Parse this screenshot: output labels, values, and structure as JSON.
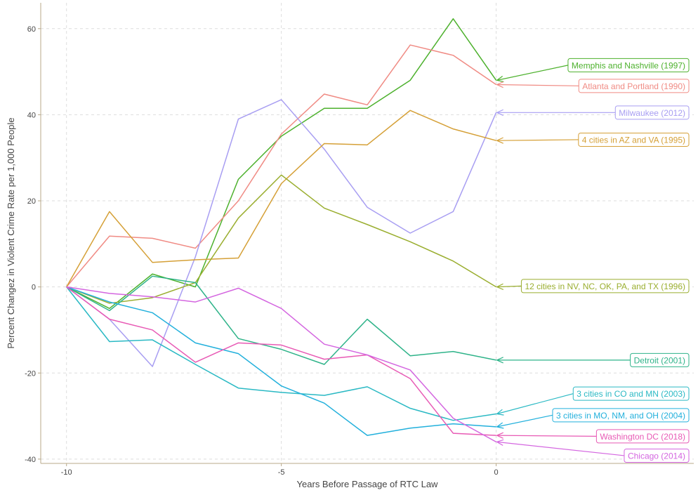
{
  "chart_data": {
    "type": "line",
    "title": "",
    "xlabel": "Years Before Passage of RTC Law",
    "ylabel": "Percent Changez in Violent Crime Rate per 1,000 People",
    "xlim": [
      -10.6,
      4.6
    ],
    "ylim": [
      -41,
      66
    ],
    "x_ticks": [
      -10,
      -5,
      0
    ],
    "x_tick_labels": [
      "-10",
      "-5",
      "0"
    ],
    "y_ticks": [
      -40,
      -20,
      0,
      20,
      40,
      60
    ],
    "y_tick_labels": [
      "-40",
      "-20",
      "0",
      "20",
      "40",
      "60"
    ],
    "grid": true,
    "legend": "none (direct labels with arrows)",
    "x": [
      -10,
      -9,
      -8,
      -7,
      -6,
      -5,
      -4,
      -3,
      -2,
      -1,
      0
    ],
    "series": [
      {
        "name": "Memphis and Nashville (1997)",
        "color": "#4db12d",
        "values": [
          0,
          -5,
          3,
          0,
          25,
          35,
          41.5,
          41.5,
          48,
          62.3,
          48
        ]
      },
      {
        "name": "Atlanta and Portland (1990)",
        "color": "#f08b84",
        "values": [
          0,
          11.8,
          11.3,
          9,
          20,
          35.5,
          44.8,
          42.3,
          56.2,
          53.8,
          47
        ]
      },
      {
        "name": "Milwaukee (2012)",
        "color": "#a89ef2",
        "values": [
          0,
          -7.5,
          -18.5,
          7,
          39,
          43.5,
          32,
          18.5,
          12.5,
          17.5,
          40.5
        ]
      },
      {
        "name": "4 cities in AZ and VA (1995)",
        "color": "#d5a037",
        "values": [
          0,
          17.5,
          5.7,
          6.3,
          6.7,
          24,
          33.3,
          33,
          41,
          36.7,
          34
        ]
      },
      {
        "name": "12 cities in NV, NC, OK, PA, and TX (1996)",
        "color": "#9aae2f",
        "values": [
          0,
          -3.8,
          -2.5,
          1,
          16,
          26,
          18.3,
          14.5,
          10.5,
          6,
          0
        ]
      },
      {
        "name": "Detroit (2001)",
        "color": "#2eb389",
        "values": [
          0,
          -5.5,
          2.5,
          1,
          -12,
          -14.5,
          -18,
          -7.5,
          -16,
          -15,
          -17
        ]
      },
      {
        "name": "3 cities in CO and MN (2003)",
        "color": "#2ab9c4",
        "values": [
          0,
          -12.7,
          -12.3,
          -18,
          -23.5,
          -24.5,
          -25.2,
          -23.2,
          -28.2,
          -31,
          -29.5
        ]
      },
      {
        "name": "3 cities in MO, NM, and OH (2004)",
        "color": "#22b0dc",
        "values": [
          0,
          -3.5,
          -6,
          -13,
          -15.5,
          -23,
          -27,
          -34.5,
          -32.8,
          -31.8,
          -32.5
        ]
      },
      {
        "name": "Washington DC (2018)",
        "color": "#e85ab5",
        "values": [
          0,
          -7.5,
          -10,
          -17.5,
          -13,
          -13.5,
          -16.8,
          -15.8,
          -21.3,
          -34,
          -34.5
        ]
      },
      {
        "name": "Chicago (2014)",
        "color": "#d466e0",
        "values": [
          0,
          -1.5,
          -2.3,
          -3.5,
          -0.3,
          -5,
          -13.3,
          -15.8,
          -19.3,
          -30.5,
          -36
        ]
      }
    ],
    "annotations": [
      {
        "text": "Memphis and Nashville (1997)",
        "series": 0,
        "y": 51.5
      },
      {
        "text": "Atlanta and Portland (1990)",
        "series": 1,
        "y": 46.7
      },
      {
        "text": "Milwaukee (2012)",
        "series": 2,
        "y": 40.5
      },
      {
        "text": "4 cities in AZ and VA (1995)",
        "series": 3,
        "y": 34.2
      },
      {
        "text": "12 cities in NV, NC, OK, PA, and TX (1996)",
        "series": 4,
        "y": 0.2
      },
      {
        "text": "Detroit (2001)",
        "series": 5,
        "y": -17
      },
      {
        "text": "3 cities in CO and MN (2003)",
        "series": 6,
        "y": -24.8
      },
      {
        "text": "3 cities in MO, NM, and OH (2004)",
        "series": 7,
        "y": -29.8
      },
      {
        "text": "Washington DC (2018)",
        "series": 8,
        "y": -34.7
      },
      {
        "text": "Chicago (2014)",
        "series": 9,
        "y": -39.2
      }
    ]
  }
}
